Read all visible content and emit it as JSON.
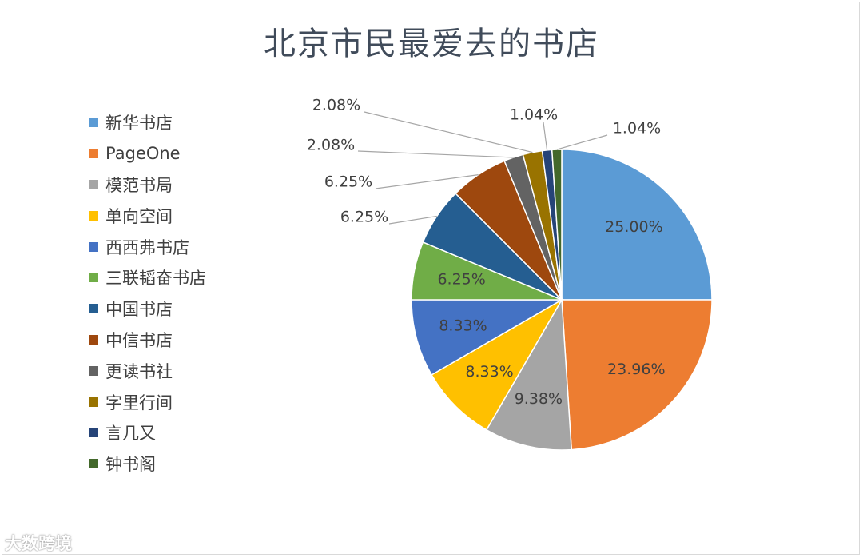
{
  "chart_data": {
    "type": "pie",
    "title": "北京市民最爱去的书店",
    "legend_position": "left",
    "slices": [
      {
        "name": "新华书店",
        "value": 25.0,
        "label": "25.00%",
        "color": "#5b9bd5"
      },
      {
        "name": "PageOne",
        "value": 23.96,
        "label": "23.96%",
        "color": "#ed7d31"
      },
      {
        "name": "模范书局",
        "value": 9.38,
        "label": "9.38%",
        "color": "#a5a5a5"
      },
      {
        "name": "单向空间",
        "value": 8.33,
        "label": "8.33%",
        "color": "#ffc000"
      },
      {
        "name": "西西弗书店",
        "value": 8.33,
        "label": "8.33%",
        "color": "#4472c4"
      },
      {
        "name": "三联韬奋书店",
        "value": 6.25,
        "label": "6.25%",
        "color": "#70ad47"
      },
      {
        "name": "中国书店",
        "value": 6.25,
        "label": "6.25%",
        "color": "#255e91"
      },
      {
        "name": "中信书店",
        "value": 6.25,
        "label": "6.25%",
        "color": "#9e480e"
      },
      {
        "name": "更读书社",
        "value": 2.08,
        "label": "2.08%",
        "color": "#636363"
      },
      {
        "name": "字里行间",
        "value": 2.08,
        "label": "2.08%",
        "color": "#997300"
      },
      {
        "name": "言几又",
        "value": 1.04,
        "label": "1.04%",
        "color": "#264478"
      },
      {
        "name": "钟书阁",
        "value": 1.04,
        "label": "1.04%",
        "color": "#43682b"
      }
    ]
  },
  "watermark": "大数跨境"
}
